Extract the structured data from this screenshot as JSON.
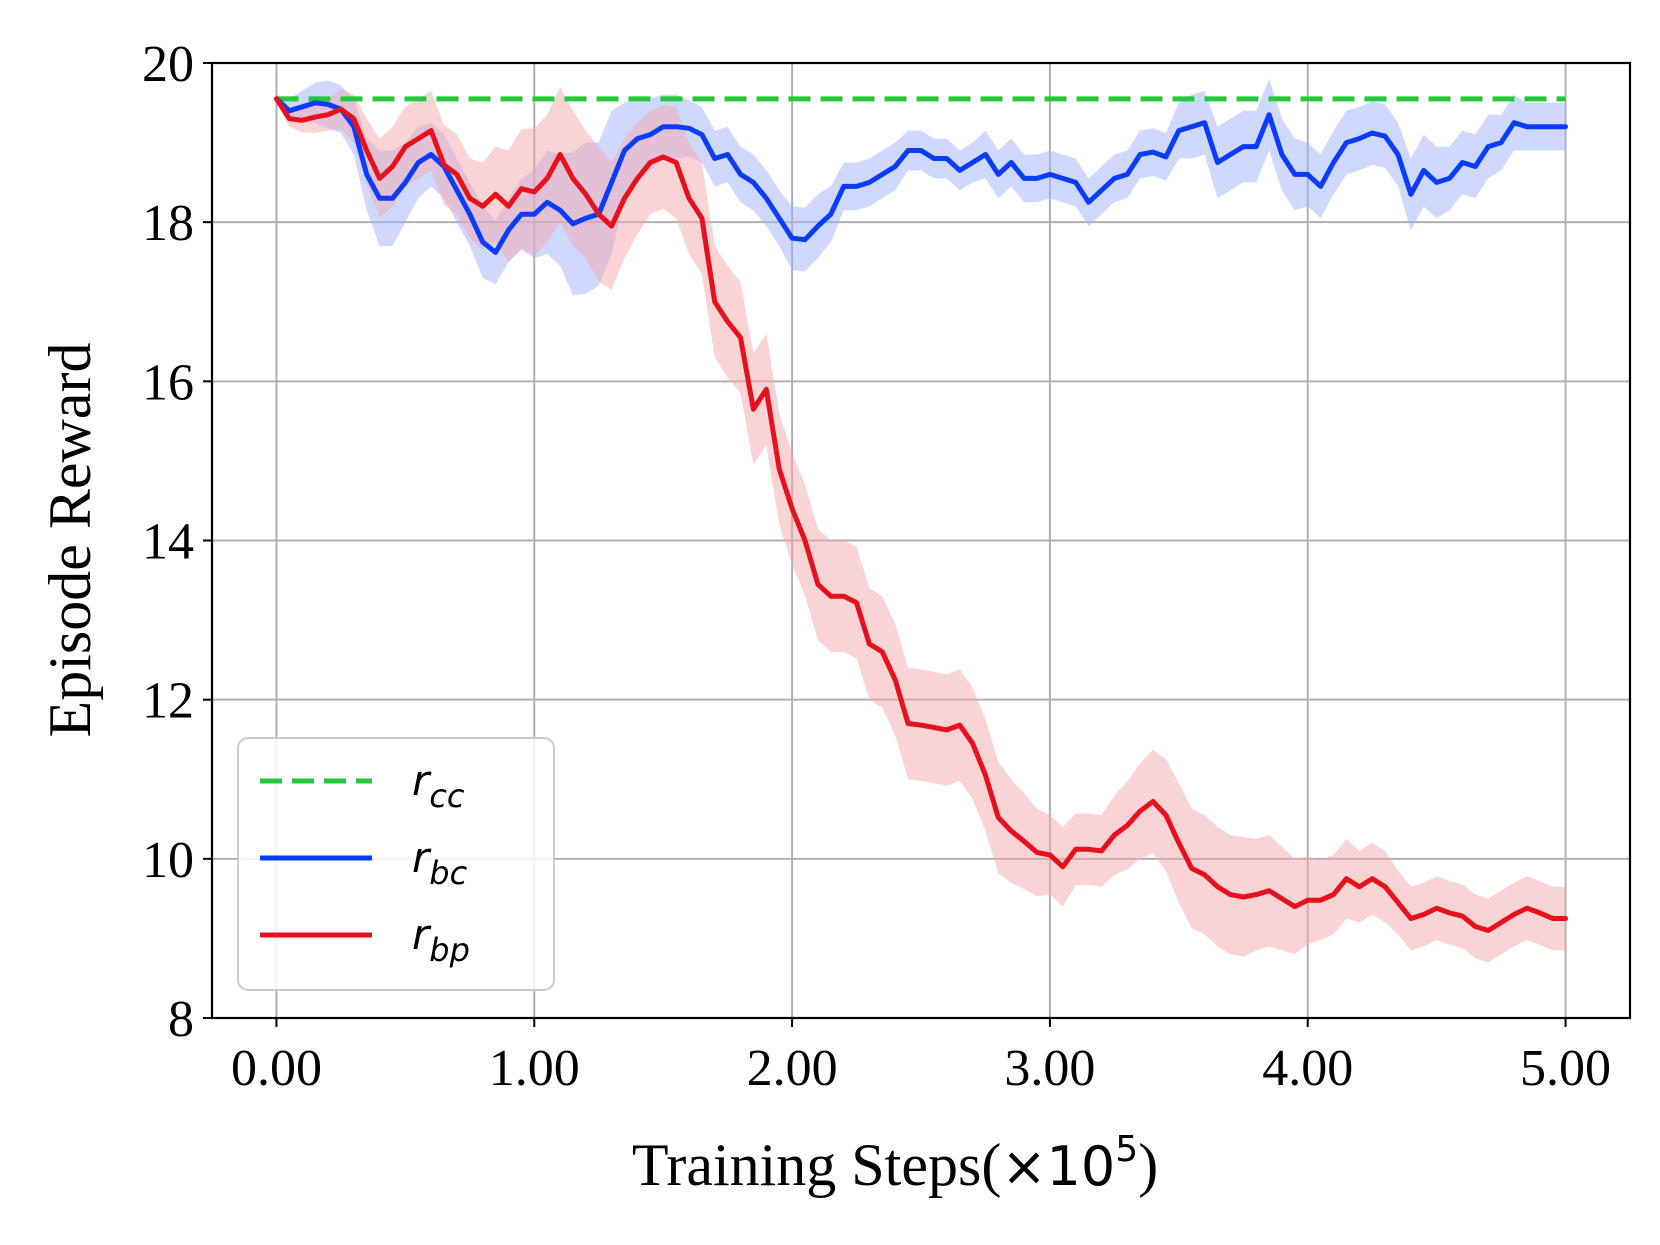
{
  "chart_data": {
    "type": "line",
    "title": "",
    "xlabel": "Training Steps(",
    "xlabel_suffix": "×10",
    "xlabel_exp": "5",
    "xlabel_close": ")",
    "ylabel": "Episode Reward",
    "xlim": [
      -0.25,
      5.25
    ],
    "ylim": [
      8,
      20
    ],
    "xticks": [
      0,
      1,
      2,
      3,
      4,
      5
    ],
    "xtick_labels": [
      "0.00",
      "1.00",
      "2.00",
      "3.00",
      "4.00",
      "5.00"
    ],
    "yticks": [
      8,
      10,
      12,
      14,
      16,
      18,
      20
    ],
    "ytick_labels": [
      "8",
      "10",
      "12",
      "14",
      "16",
      "18",
      "20"
    ],
    "grid": true,
    "legend_position": "lower-left",
    "x": [
      0,
      0.05,
      0.1,
      0.15,
      0.2,
      0.25,
      0.3,
      0.35,
      0.4,
      0.45,
      0.5,
      0.55,
      0.6,
      0.65,
      0.7,
      0.75,
      0.8,
      0.85,
      0.9,
      0.95,
      1.0,
      1.05,
      1.1,
      1.15,
      1.2,
      1.25,
      1.3,
      1.35,
      1.4,
      1.45,
      1.5,
      1.55,
      1.6,
      1.65,
      1.7,
      1.75,
      1.8,
      1.85,
      1.9,
      1.95,
      2.0,
      2.05,
      2.1,
      2.15,
      2.2,
      2.25,
      2.3,
      2.35,
      2.4,
      2.45,
      2.5,
      2.55,
      2.6,
      2.65,
      2.7,
      2.75,
      2.8,
      2.85,
      2.9,
      2.95,
      3.0,
      3.05,
      3.1,
      3.15,
      3.2,
      3.25,
      3.3,
      3.35,
      3.4,
      3.45,
      3.5,
      3.55,
      3.6,
      3.65,
      3.7,
      3.75,
      3.8,
      3.85,
      3.9,
      3.95,
      4.0,
      4.05,
      4.1,
      4.15,
      4.2,
      4.25,
      4.3,
      4.35,
      4.4,
      4.45,
      4.5,
      4.55,
      4.6,
      4.65,
      4.7,
      4.75,
      4.8,
      4.85,
      4.9,
      4.95,
      5.0
    ],
    "series": [
      {
        "name": "r_cc",
        "label_main": "r",
        "label_sub": "cc",
        "color": "#22c93a",
        "style": "dashed",
        "constant": 19.55
      },
      {
        "name": "r_bc",
        "label_main": "r",
        "label_sub": "bc",
        "color": "#0a3cff",
        "band_color": "#9fb4ff",
        "style": "solid",
        "values": [
          19.55,
          19.4,
          19.45,
          19.5,
          19.48,
          19.42,
          19.2,
          18.6,
          18.3,
          18.3,
          18.5,
          18.75,
          18.85,
          18.7,
          18.4,
          18.1,
          17.75,
          17.62,
          17.9,
          18.1,
          18.1,
          18.25,
          18.15,
          17.98,
          18.05,
          18.1,
          18.5,
          18.9,
          19.05,
          19.1,
          19.2,
          19.2,
          19.18,
          19.1,
          18.8,
          18.85,
          18.6,
          18.5,
          18.3,
          18.05,
          17.8,
          17.78,
          17.95,
          18.1,
          18.45,
          18.45,
          18.5,
          18.6,
          18.7,
          18.9,
          18.9,
          18.8,
          18.8,
          18.65,
          18.75,
          18.85,
          18.6,
          18.75,
          18.55,
          18.55,
          18.6,
          18.55,
          18.5,
          18.25,
          18.4,
          18.55,
          18.6,
          18.85,
          18.88,
          18.82,
          19.15,
          19.2,
          19.25,
          18.75,
          18.85,
          18.95,
          18.95,
          19.35,
          18.85,
          18.6,
          18.6,
          18.45,
          18.75,
          19.0,
          19.05,
          19.12,
          19.08,
          18.85,
          18.35,
          18.65,
          18.5,
          18.55,
          18.75,
          18.7,
          18.95,
          19.0,
          19.25,
          19.2,
          19.2,
          19.2,
          19.2
        ],
        "spread": [
          0.05,
          0.15,
          0.2,
          0.25,
          0.3,
          0.3,
          0.35,
          0.45,
          0.6,
          0.6,
          0.5,
          0.45,
          0.4,
          0.4,
          0.4,
          0.4,
          0.45,
          0.4,
          0.4,
          0.45,
          0.55,
          0.65,
          0.7,
          0.9,
          0.95,
          0.9,
          0.9,
          0.6,
          0.5,
          0.45,
          0.4,
          0.4,
          0.35,
          0.35,
          0.35,
          0.35,
          0.35,
          0.35,
          0.35,
          0.35,
          0.4,
          0.4,
          0.4,
          0.35,
          0.3,
          0.3,
          0.3,
          0.3,
          0.3,
          0.25,
          0.25,
          0.25,
          0.25,
          0.25,
          0.25,
          0.3,
          0.3,
          0.3,
          0.3,
          0.3,
          0.3,
          0.3,
          0.3,
          0.3,
          0.3,
          0.3,
          0.3,
          0.3,
          0.3,
          0.3,
          0.35,
          0.4,
          0.4,
          0.45,
          0.45,
          0.45,
          0.45,
          0.45,
          0.45,
          0.45,
          0.4,
          0.4,
          0.4,
          0.4,
          0.4,
          0.4,
          0.4,
          0.4,
          0.45,
          0.45,
          0.45,
          0.4,
          0.4,
          0.4,
          0.4,
          0.35,
          0.35,
          0.3,
          0.3,
          0.3,
          0.3
        ]
      },
      {
        "name": "r_bp",
        "label_main": "r",
        "label_sub": "bp",
        "color": "#e8101c",
        "band_color": "#f6a8ac",
        "style": "solid",
        "values": [
          19.55,
          19.3,
          19.28,
          19.32,
          19.35,
          19.42,
          19.3,
          18.9,
          18.55,
          18.7,
          18.95,
          19.05,
          19.15,
          18.72,
          18.6,
          18.3,
          18.2,
          18.35,
          18.2,
          18.42,
          18.38,
          18.55,
          18.85,
          18.55,
          18.35,
          18.1,
          17.95,
          18.3,
          18.55,
          18.75,
          18.82,
          18.75,
          18.3,
          18.05,
          17.0,
          16.75,
          16.55,
          15.65,
          15.9,
          14.9,
          14.4,
          14.0,
          13.45,
          13.3,
          13.3,
          13.22,
          12.7,
          12.6,
          12.25,
          11.7,
          11.68,
          11.65,
          11.62,
          11.68,
          11.45,
          11.05,
          10.52,
          10.35,
          10.22,
          10.08,
          10.05,
          9.9,
          10.12,
          10.12,
          10.1,
          10.3,
          10.42,
          10.6,
          10.72,
          10.55,
          10.2,
          9.88,
          9.8,
          9.65,
          9.55,
          9.52,
          9.55,
          9.6,
          9.5,
          9.4,
          9.48,
          9.48,
          9.55,
          9.75,
          9.65,
          9.75,
          9.65,
          9.45,
          9.25,
          9.3,
          9.38,
          9.32,
          9.28,
          9.15,
          9.1,
          9.2,
          9.3,
          9.38,
          9.32,
          9.25,
          9.25
        ],
        "spread": [
          0.05,
          0.1,
          0.15,
          0.2,
          0.2,
          0.25,
          0.3,
          0.4,
          0.5,
          0.5,
          0.5,
          0.5,
          0.5,
          0.5,
          0.5,
          0.5,
          0.55,
          0.6,
          0.7,
          0.75,
          0.8,
          0.8,
          0.85,
          0.85,
          0.8,
          0.85,
          0.8,
          0.75,
          0.7,
          0.65,
          0.65,
          0.7,
          0.7,
          0.7,
          0.7,
          0.7,
          0.7,
          0.7,
          0.7,
          0.7,
          0.7,
          0.7,
          0.7,
          0.7,
          0.7,
          0.7,
          0.7,
          0.7,
          0.7,
          0.7,
          0.7,
          0.7,
          0.7,
          0.7,
          0.7,
          0.7,
          0.7,
          0.65,
          0.6,
          0.55,
          0.5,
          0.5,
          0.45,
          0.45,
          0.45,
          0.5,
          0.55,
          0.6,
          0.65,
          0.7,
          0.75,
          0.75,
          0.75,
          0.75,
          0.75,
          0.75,
          0.7,
          0.7,
          0.65,
          0.6,
          0.55,
          0.5,
          0.5,
          0.5,
          0.45,
          0.45,
          0.45,
          0.4,
          0.4,
          0.4,
          0.4,
          0.4,
          0.4,
          0.4,
          0.4,
          0.4,
          0.4,
          0.4,
          0.4,
          0.4,
          0.4
        ]
      }
    ]
  }
}
